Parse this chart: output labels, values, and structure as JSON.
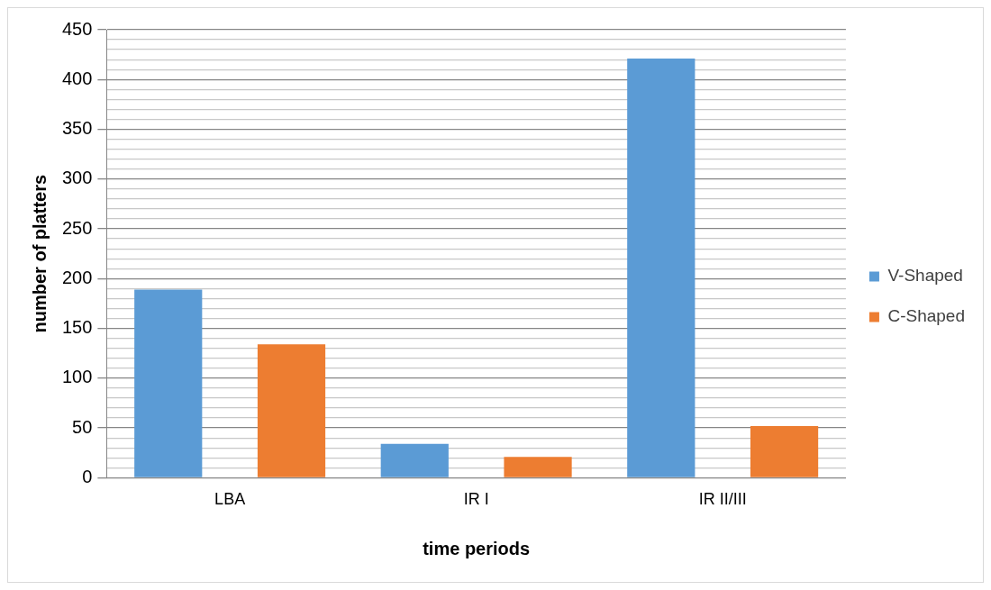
{
  "chart_data": {
    "type": "bar",
    "xlabel": "time periods",
    "ylabel": "number of platters",
    "categories": [
      "LBA",
      "IR I",
      "IR II/III"
    ],
    "series": [
      {
        "name": "V-Shaped",
        "color": "#5b9bd5",
        "values": [
          189,
          34,
          421
        ]
      },
      {
        "name": "C-Shaped",
        "color": "#ed7d31",
        "values": [
          134,
          21,
          52
        ]
      }
    ],
    "ylim": [
      0,
      450
    ],
    "yticks": [
      0,
      {
        "value": 10,
        "label": null
      },
      {
        "value": 20,
        "label": null
      },
      {
        "value": 30,
        "label": null
      },
      {
        "value": 40,
        "label": null
      },
      50,
      {
        "value": 60,
        "label": null
      },
      {
        "value": 70,
        "label": null
      },
      {
        "value": 80,
        "label": null
      },
      {
        "value": 90,
        "label": null
      },
      100,
      {
        "value": 110,
        "label": null
      },
      {
        "value": 120,
        "label": null
      },
      {
        "value": 130,
        "label": null
      },
      {
        "value": 140,
        "label": null
      },
      150,
      {
        "value": 160,
        "label": null
      },
      {
        "value": 170,
        "label": null
      },
      {
        "value": 180,
        "label": null
      },
      {
        "value": 190,
        "label": null
      },
      200,
      {
        "value": 210,
        "label": null
      },
      {
        "value": 220,
        "label": null
      },
      {
        "value": 230,
        "label": null
      },
      {
        "value": 240,
        "label": null
      },
      250,
      {
        "value": 260,
        "label": null
      },
      {
        "value": 270,
        "label": null
      },
      {
        "value": 280,
        "label": null
      },
      {
        "value": 290,
        "label": null
      },
      300,
      {
        "value": 310,
        "label": null
      },
      {
        "value": 320,
        "label": null
      },
      {
        "value": 330,
        "label": null
      },
      {
        "value": 340,
        "label": null
      },
      350,
      {
        "value": 360,
        "label": null
      },
      {
        "value": 370,
        "label": null
      },
      {
        "value": 380,
        "label": null
      },
      {
        "value": 390,
        "label": null
      },
      400,
      {
        "value": 410,
        "label": null
      },
      {
        "value": 420,
        "label": null
      },
      {
        "value": 430,
        "label": null
      },
      {
        "value": 440,
        "label": null
      },
      450
    ],
    "grid": "y",
    "legend": "right"
  }
}
